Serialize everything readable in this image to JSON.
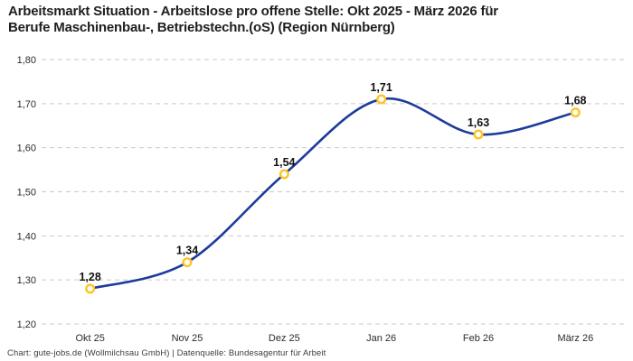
{
  "header": {
    "title_lines": [
      "Arbeitsmarkt Situation - Arbeitslose pro offene Stelle: Okt 2025 - März 2026 für",
      "Berufe Maschinenbau-, Betriebstechn.(oS) (Region Nürnberg)"
    ]
  },
  "footer": {
    "credit": "Chart: gute-jobs.de (Wollmilchsau GmbH) | Datenquelle: Bundesagentur für Arbeit"
  },
  "chart_data": {
    "type": "line",
    "title": "Arbeitsmarkt Situation - Arbeitslose pro offene Stelle: Okt 2025 - März 2026 für Berufe Maschinenbau-, Betriebstechn.(oS) (Region Nürnberg)",
    "categories": [
      "Okt 25",
      "Nov 25",
      "Dez 25",
      "Jan 26",
      "Feb 26",
      "März 26"
    ],
    "values": [
      1.28,
      1.34,
      1.54,
      1.71,
      1.63,
      1.68
    ],
    "value_labels": [
      "1,28",
      "1,34",
      "1,54",
      "1,71",
      "1,63",
      "1,68"
    ],
    "y_ticks": [
      {
        "value": 1.8,
        "label": "1,80"
      },
      {
        "value": 1.7,
        "label": "1,70"
      },
      {
        "value": 1.6,
        "label": "1,60"
      },
      {
        "value": 1.5,
        "label": "1,50"
      },
      {
        "value": 1.4,
        "label": "1,40"
      },
      {
        "value": 1.3,
        "label": "1,30"
      },
      {
        "value": 1.2,
        "label": "1,20"
      }
    ],
    "ylim": [
      1.2,
      1.8
    ],
    "grid": "dashed horizontal",
    "legend": "none",
    "line_style": "smooth spline",
    "colors": {
      "line": "#1d3b9b",
      "marker_ring": "#ffc421",
      "marker_fill": "#ffffff",
      "gridline": "#c9c9c9",
      "value_label_text": "#111111"
    }
  }
}
